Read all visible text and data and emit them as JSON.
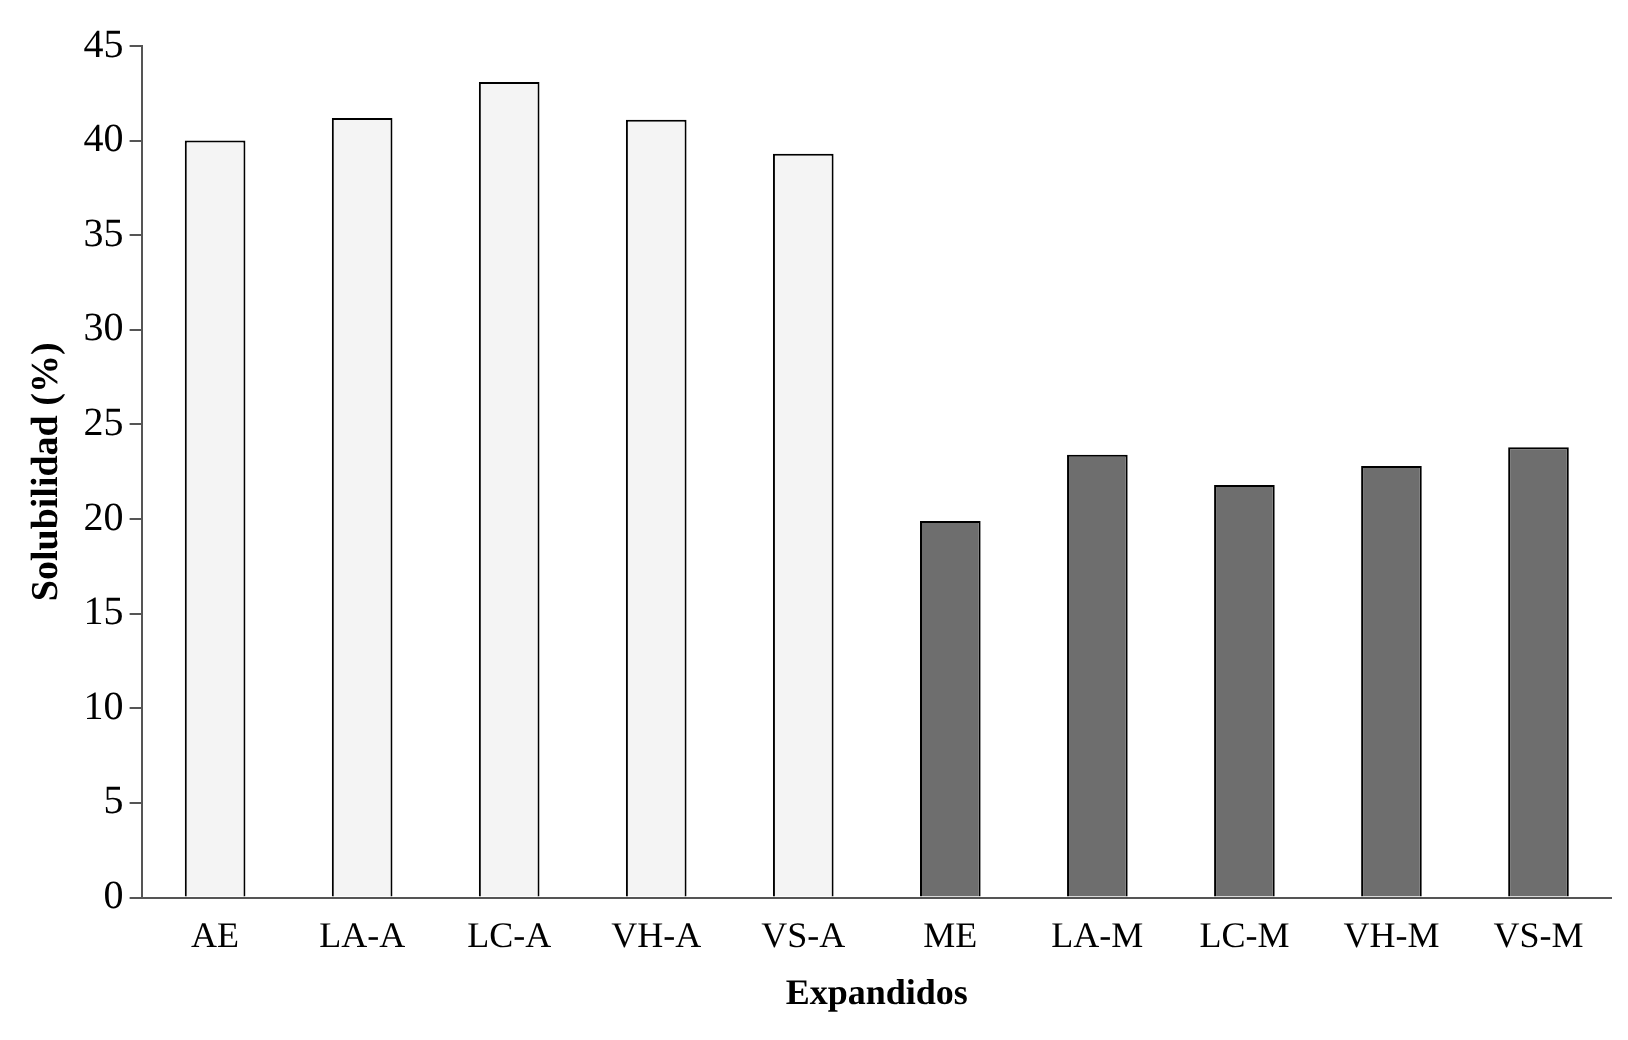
{
  "chart_data": {
    "type": "bar",
    "xlabel": "Expandidos",
    "ylabel": "Solubilidad (%)",
    "categories": [
      "AE",
      "LA-A",
      "LC-A",
      "VH-A",
      "VS-A",
      "ME",
      "LA-M",
      "LC-M",
      "VH-M",
      "VS-M"
    ],
    "values": [
      40,
      41.2,
      43.1,
      41.1,
      39.3,
      19.9,
      23.4,
      21.8,
      22.8,
      23.8
    ],
    "colors": [
      "#f4f4f4",
      "#f4f4f4",
      "#f4f4f4",
      "#f4f4f4",
      "#f4f4f4",
      "#6e6e6e",
      "#6e6e6e",
      "#6e6e6e",
      "#6e6e6e",
      "#6e6e6e"
    ],
    "ylim": [
      0,
      45
    ],
    "yticks": [
      0,
      5,
      10,
      15,
      20,
      25,
      30,
      35,
      40,
      45
    ],
    "grid": false,
    "legend": false
  }
}
